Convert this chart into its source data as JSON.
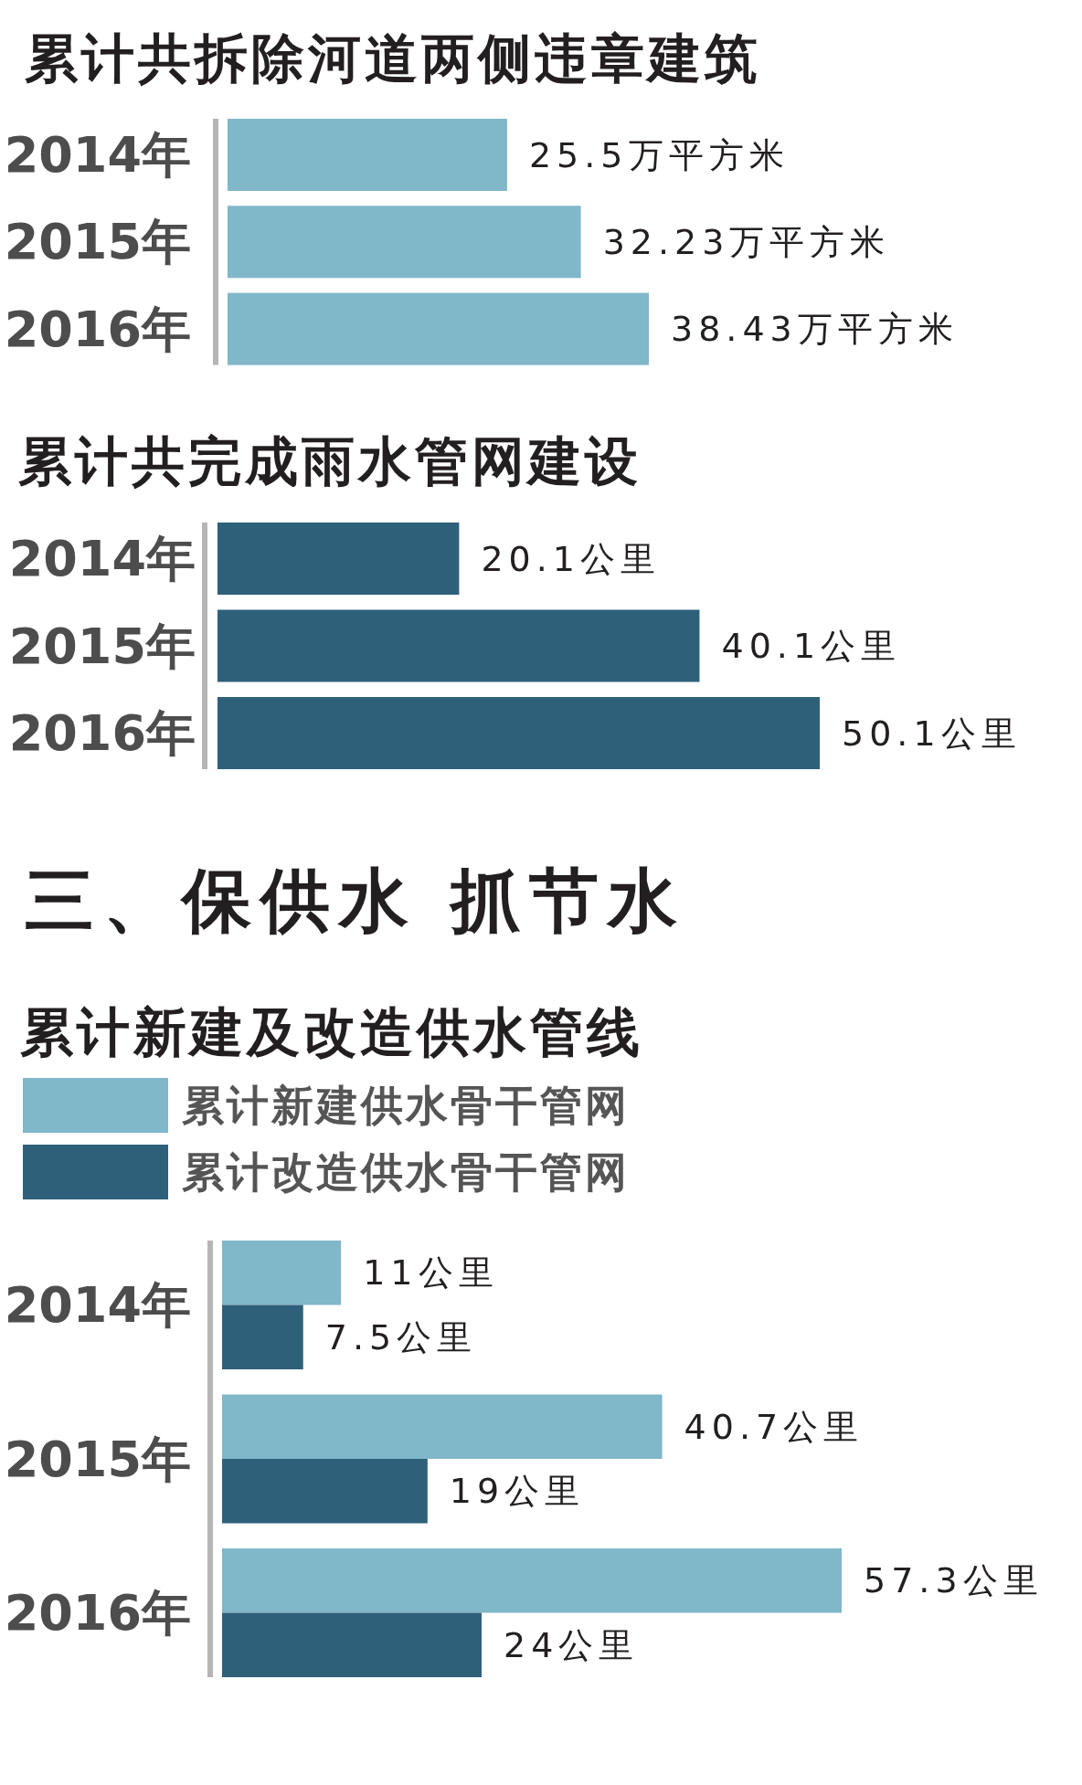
{
  "chart_data": [
    {
      "type": "bar",
      "orientation": "horizontal",
      "title": "累计共拆除河道两侧违章建筑",
      "categories": [
        "2014年",
        "2015年",
        "2016年"
      ],
      "values": [
        25.5,
        32.23,
        38.43
      ],
      "color": "#80b7c9",
      "value_labels": [
        "25.5万平方米",
        "32.23万平方米",
        "38.43万平方米"
      ],
      "tick_labels": "y"
    },
    {
      "type": "bar",
      "orientation": "horizontal",
      "title": "累计共完成雨水管网建设",
      "categories": [
        "2014年",
        "2015年",
        "2016年"
      ],
      "values": [
        20.1,
        40.1,
        50.1
      ],
      "color": "#2e607a",
      "value_labels": [
        "20.1公里",
        "40.1公里",
        "50.1公里"
      ],
      "tick_labels": "y"
    },
    {
      "type": "bar",
      "orientation": "horizontal",
      "title": "三、保供水 抓节水",
      "subtitle": "累计新建及改造供水管线",
      "categories": [
        "2014年",
        "2015年",
        "2016年"
      ],
      "series": [
        {
          "name": "累计新建供水骨干管网",
          "color": "#80b7c9",
          "values": [
            11,
            40.7,
            57.3
          ],
          "value_labels": [
            "11公里",
            "40.7公里",
            "57.3公里"
          ]
        },
        {
          "name": "累计改造供水骨干管网",
          "color": "#2e607a",
          "values": [
            7.5,
            19,
            24
          ],
          "value_labels": [
            "7.5公里",
            "19公里",
            "24公里"
          ]
        }
      ],
      "legend": "top left",
      "tick_labels": "y"
    }
  ]
}
